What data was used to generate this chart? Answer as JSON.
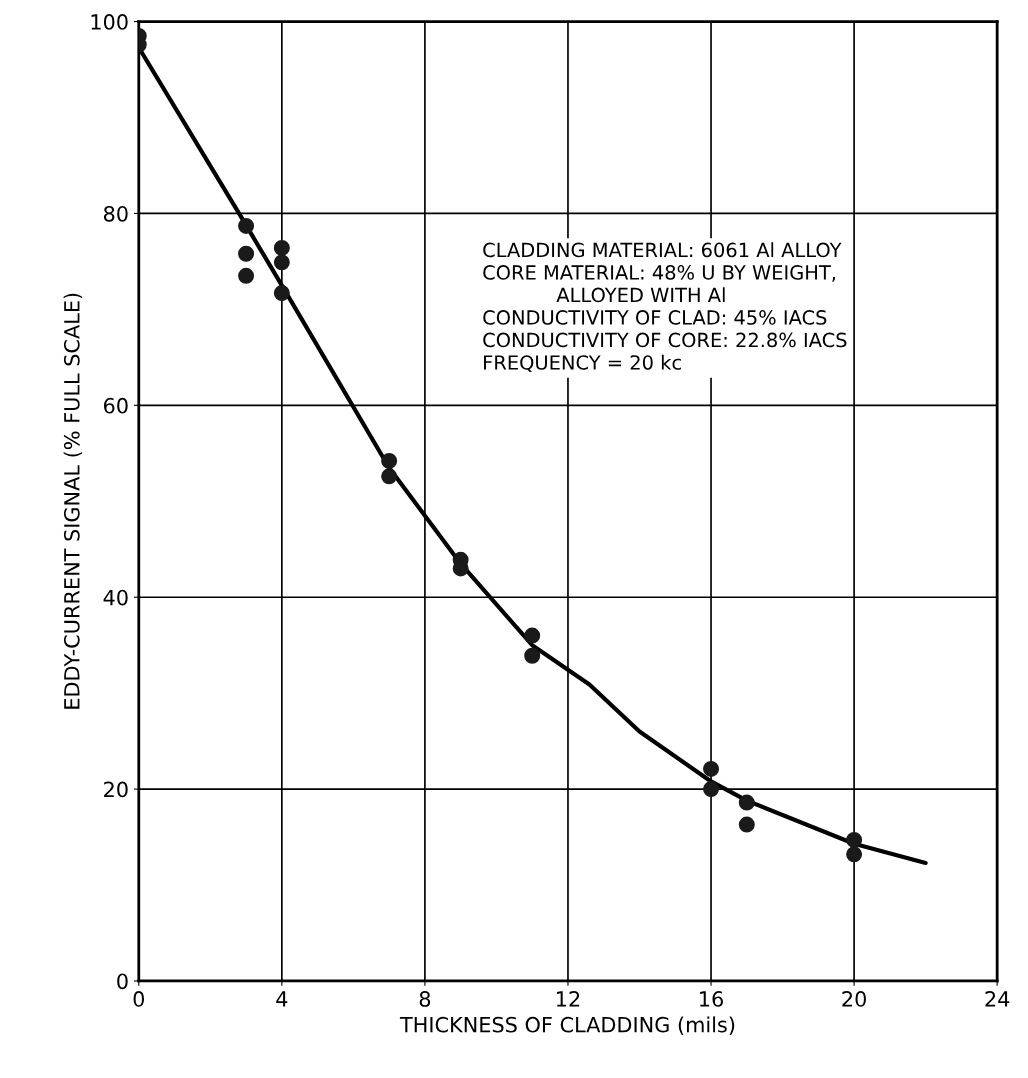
{
  "chart_data": {
    "type": "scatter",
    "xlabel": "THICKNESS OF CLADDING (mils)",
    "ylabel": "EDDY-CURRENT SIGNAL (% FULL SCALE)",
    "xlim": [
      0,
      24
    ],
    "xticks": [
      0,
      4,
      8,
      12,
      16,
      20,
      24
    ],
    "ylim": [
      0,
      100
    ],
    "yticks": [
      0,
      20,
      40,
      60,
      80,
      100
    ],
    "grid": true,
    "series": [
      {
        "color": "#1a1a1a",
        "marker": "circle",
        "x": [
          0,
          0,
          3,
          3,
          3,
          4,
          4,
          4,
          7,
          7,
          9,
          9,
          11,
          11,
          16,
          16,
          17,
          17,
          20,
          20
        ],
        "values": [
          98.5,
          97.6,
          78.7,
          75.8,
          73.5,
          76.4,
          74.9,
          71.7,
          54.2,
          52.6,
          43.9,
          43.0,
          36.0,
          33.9,
          22.1,
          20.0,
          18.6,
          16.3,
          14.7,
          13.2
        ]
      },
      {
        "type": "line",
        "color": "#000000",
        "marker": "none",
        "x": [
          0,
          2.9,
          4,
          7,
          9,
          11,
          12.6,
          14,
          16,
          17,
          20,
          22
        ],
        "values": [
          97.3,
          79.4,
          72.5,
          53.5,
          43.5,
          35,
          30.9,
          26,
          20.8,
          18.8,
          14.3,
          12.3
        ]
      }
    ],
    "annotations": [
      "CLADDING MATERIAL: 6061 Al ALLOY\nCORE MATERIAL: 48% U BY WEIGHT,\n            ALLOYED WITH Al\nCONDUCTIVITY OF CLAD: 45% IACS\nCONDUCTIVITY OF CORE: 22.8% IACS\nFREQUENCY = 20 kc"
    ]
  }
}
